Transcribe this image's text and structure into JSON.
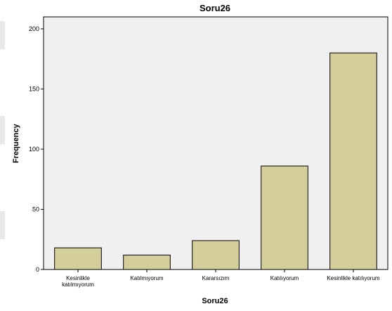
{
  "chart_data": {
    "type": "bar",
    "title": "Soru26",
    "xlabel": "Soru26",
    "ylabel": "Frequency",
    "categories": [
      "Kesinlikle katılmıyorum",
      "Katılmıyorum",
      "Kararsızım",
      "Katılıyorum",
      "Kesinlikle katılıyorum"
    ],
    "category_lines": [
      [
        "Kesinlikle",
        "katılmıyorum"
      ],
      [
        "Katılmıyorum"
      ],
      [
        "Kararsızım"
      ],
      [
        "Katılıyorum"
      ],
      [
        "Kesinlikle katılıyorum"
      ]
    ],
    "values": [
      18,
      12,
      24,
      86,
      180
    ],
    "ylim": [
      0,
      210
    ],
    "yticks": [
      0,
      50,
      100,
      150,
      200
    ],
    "grid": false,
    "colors": {
      "bar_fill": "#d4ce9a",
      "plot_background": "#f0f0f0"
    }
  }
}
